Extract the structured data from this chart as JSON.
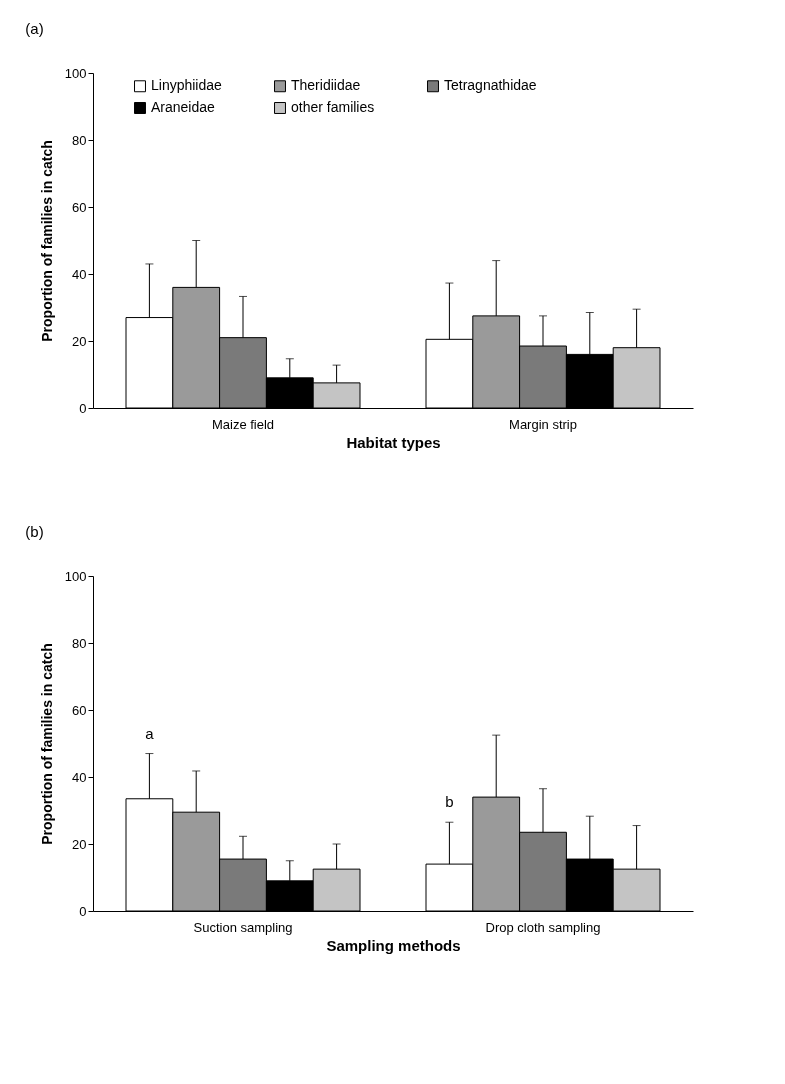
{
  "chart_data": [
    {
      "type": "bar",
      "title": "(a)",
      "xlabel": "Habitat types",
      "ylabel": "Proportion of families in catch",
      "categories": [
        "Maize field",
        "Margin strip"
      ],
      "ylim": [
        0,
        100
      ],
      "yticks": [
        0,
        20,
        40,
        60,
        80,
        100
      ],
      "legend": "top",
      "series": [
        {
          "name": "Linyphiidae",
          "color": "#ffffff",
          "values": [
            27,
            20.5
          ],
          "errors": [
            [
              27,
              43
            ],
            [
              20.5,
              37.3
            ]
          ]
        },
        {
          "name": "Theridiidae",
          "color": "#9a9a9a",
          "values": [
            36,
            27.5
          ],
          "errors": [
            [
              36,
              50
            ],
            [
              27.5,
              44
            ]
          ]
        },
        {
          "name": "Tetragnathidae",
          "color": "#7a7a7a",
          "values": [
            21,
            18.5
          ],
          "errors": [
            [
              21,
              33.3
            ],
            [
              18.5,
              27.5
            ]
          ]
        },
        {
          "name": "Araneidae",
          "color": "#000000",
          "values": [
            9,
            16
          ],
          "errors": [
            [
              9,
              14.7
            ],
            [
              16,
              28.5
            ]
          ]
        },
        {
          "name": "other families",
          "color": "#c4c4c4",
          "values": [
            7.5,
            18
          ],
          "errors": [
            [
              7.5,
              12.8
            ],
            [
              18,
              29.5
            ]
          ]
        }
      ]
    },
    {
      "type": "bar",
      "title": "(b)",
      "xlabel": "Sampling methods",
      "ylabel": "Proportion of families in catch",
      "categories": [
        "Suction sampling",
        "Drop cloth sampling"
      ],
      "ylim": [
        0,
        100
      ],
      "yticks": [
        0,
        20,
        40,
        60,
        80,
        100
      ],
      "legend": "top",
      "annotations": [
        "a",
        "b"
      ],
      "series": [
        {
          "name": "Linyphiidae",
          "color": "#ffffff",
          "values": [
            33.5,
            14
          ],
          "errors": [
            [
              33.5,
              47
            ],
            [
              14,
              26.5
            ]
          ]
        },
        {
          "name": "Theridiidae",
          "color": "#9a9a9a",
          "values": [
            29.5,
            34
          ],
          "errors": [
            [
              29.5,
              41.8
            ],
            [
              34,
              52.5
            ]
          ]
        },
        {
          "name": "Tetragnathidae",
          "color": "#7a7a7a",
          "values": [
            15.5,
            23.5
          ],
          "errors": [
            [
              15.5,
              22.3
            ],
            [
              23.5,
              36.5
            ]
          ]
        },
        {
          "name": "Araneidae",
          "color": "#000000",
          "values": [
            9,
            15.5
          ],
          "errors": [
            [
              9,
              15
            ],
            [
              15.5,
              28.3
            ]
          ]
        },
        {
          "name": "other families",
          "color": "#c4c4c4",
          "values": [
            12.5,
            12.5
          ],
          "errors": [
            [
              12.5,
              20
            ],
            [
              12.5,
              25.5
            ]
          ]
        }
      ]
    }
  ]
}
